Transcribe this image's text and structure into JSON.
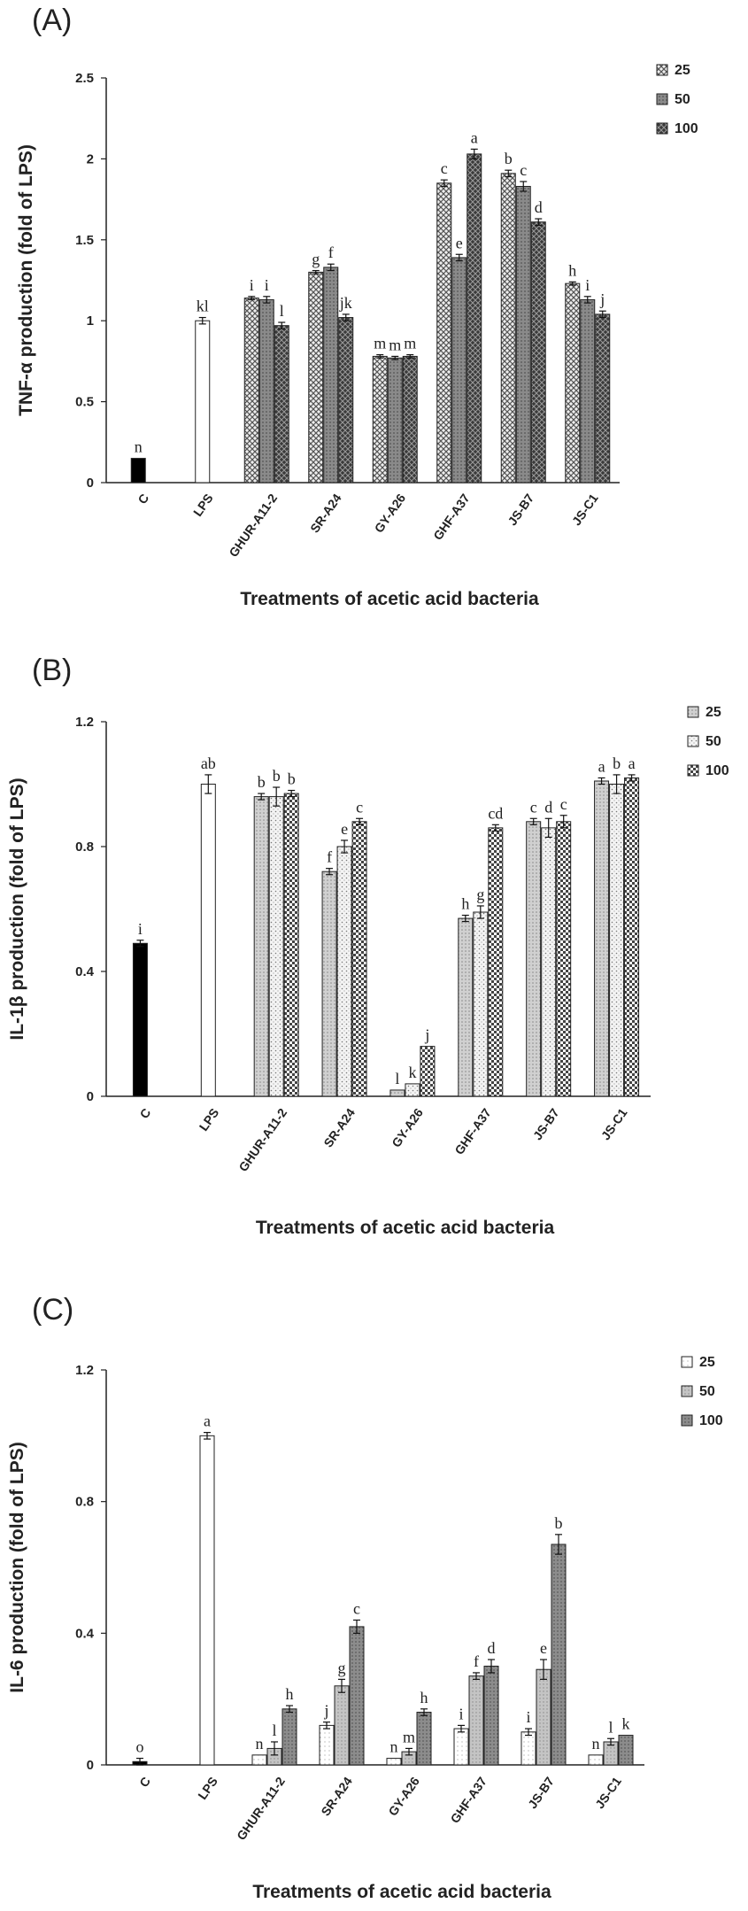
{
  "chart_data": [
    {
      "type": "bar",
      "panel_label": "(A)",
      "ylabel": "TNF-α production (fold of LPS)",
      "xlabel": "Treatments of acetic acid bacteria",
      "ylim": [
        0,
        2.5
      ],
      "yticks": [
        "0",
        "0.5",
        "1",
        "1.5",
        "2",
        "2.5"
      ],
      "legend_position": "top-right",
      "legend": [
        "25",
        "50",
        "100"
      ],
      "colors": {
        "C": "#000000",
        "LPS": "#ffffff",
        "s25": "#9c9c9c",
        "s50": "#8a8a8a",
        "s100": "#3a3a3a"
      },
      "controls": [
        {
          "category": "C",
          "value": 0.15,
          "err": 0.0,
          "label": "n"
        },
        {
          "category": "LPS",
          "value": 1.0,
          "err": 0.02,
          "label": "kl"
        }
      ],
      "groups": [
        {
          "category": "GHUR-A11-2",
          "values": [
            1.14,
            1.13,
            0.97
          ],
          "errs": [
            0.01,
            0.02,
            0.02
          ],
          "labels": [
            "i",
            "i",
            "l"
          ]
        },
        {
          "category": "SR-A24",
          "values": [
            1.3,
            1.33,
            1.02
          ],
          "errs": [
            0.01,
            0.02,
            0.02
          ],
          "labels": [
            "g",
            "f",
            "jk"
          ]
        },
        {
          "category": "GY-A26",
          "values": [
            0.78,
            0.77,
            0.78
          ],
          "errs": [
            0.01,
            0.01,
            0.01
          ],
          "labels": [
            "m",
            "m",
            "m"
          ]
        },
        {
          "category": "GHF-A37",
          "values": [
            1.85,
            1.39,
            2.03
          ],
          "errs": [
            0.02,
            0.02,
            0.03
          ],
          "labels": [
            "c",
            "e",
            "a"
          ]
        },
        {
          "category": "JS-B7",
          "values": [
            1.91,
            1.83,
            1.61
          ],
          "errs": [
            0.02,
            0.03,
            0.02
          ],
          "labels": [
            "b",
            "c",
            "d"
          ]
        },
        {
          "category": "JS-C1",
          "values": [
            1.23,
            1.13,
            1.04
          ],
          "errs": [
            0.01,
            0.02,
            0.02
          ],
          "labels": [
            "h",
            "i",
            "j"
          ]
        }
      ]
    },
    {
      "type": "bar",
      "panel_label": "(B)",
      "ylabel": "IL-1β production (fold of LPS)",
      "xlabel": "Treatments of acetic acid bacteria",
      "ylim": [
        0,
        1.2
      ],
      "yticks": [
        "0",
        "0.4",
        "0.8",
        "1.2"
      ],
      "legend_position": "top-right",
      "legend": [
        "25",
        "50",
        "100"
      ],
      "colors": {
        "C": "#000000",
        "LPS": "#ffffff",
        "s25": "#c8c8c8",
        "s50": "#e8e8e8",
        "s100": "#6a6a6a"
      },
      "controls": [
        {
          "category": "C",
          "value": 0.49,
          "err": 0.01,
          "label": "i"
        },
        {
          "category": "LPS",
          "value": 1.0,
          "err": 0.03,
          "label": "ab"
        }
      ],
      "groups": [
        {
          "category": "GHUR-A11-2",
          "values": [
            0.96,
            0.96,
            0.97
          ],
          "errs": [
            0.01,
            0.03,
            0.01
          ],
          "labels": [
            "b",
            "b",
            "b"
          ]
        },
        {
          "category": "SR-A24",
          "values": [
            0.72,
            0.8,
            0.88
          ],
          "errs": [
            0.01,
            0.02,
            0.01
          ],
          "labels": [
            "f",
            "e",
            "c"
          ]
        },
        {
          "category": "GY-A26",
          "values": [
            0.02,
            0.04,
            0.16
          ],
          "errs": [
            0.0,
            0.0,
            0.0
          ],
          "labels": [
            "l",
            "k",
            "j"
          ]
        },
        {
          "category": "GHF-A37",
          "values": [
            0.57,
            0.59,
            0.86
          ],
          "errs": [
            0.01,
            0.02,
            0.01
          ],
          "labels": [
            "h",
            "g",
            "cd"
          ]
        },
        {
          "category": "JS-B7",
          "values": [
            0.88,
            0.86,
            0.88
          ],
          "errs": [
            0.01,
            0.03,
            0.02
          ],
          "labels": [
            "c",
            "d",
            "c"
          ]
        },
        {
          "category": "JS-C1",
          "values": [
            1.01,
            1.0,
            1.02
          ],
          "errs": [
            0.01,
            0.03,
            0.01
          ],
          "labels": [
            "a",
            "b",
            "a"
          ]
        }
      ]
    },
    {
      "type": "bar",
      "panel_label": "(C)",
      "ylabel": "IL-6 production (fold of LPS)",
      "xlabel": "Treatments of acetic acid bacteria",
      "ylim": [
        0,
        1.2
      ],
      "yticks": [
        "0",
        "0.4",
        "0.8",
        "1.2"
      ],
      "legend_position": "top-right",
      "legend": [
        "25",
        "50",
        "100"
      ],
      "colors": {
        "C": "#000000",
        "LPS": "#ffffff",
        "s25": "#f2f2f2",
        "s50": "#bdbdbd",
        "s100": "#8c8c8c"
      },
      "controls": [
        {
          "category": "C",
          "value": 0.01,
          "err": 0.01,
          "label": "o"
        },
        {
          "category": "LPS",
          "value": 1.0,
          "err": 0.01,
          "label": "a"
        }
      ],
      "groups": [
        {
          "category": "GHUR-A11-2",
          "values": [
            0.03,
            0.05,
            0.17
          ],
          "errs": [
            0.0,
            0.02,
            0.01
          ],
          "labels": [
            "n",
            "l",
            "h"
          ]
        },
        {
          "category": "SR-A24",
          "values": [
            0.12,
            0.24,
            0.42
          ],
          "errs": [
            0.01,
            0.02,
            0.02
          ],
          "labels": [
            "j",
            "g",
            "c"
          ]
        },
        {
          "category": "GY-A26",
          "values": [
            0.02,
            0.04,
            0.16
          ],
          "errs": [
            0.0,
            0.01,
            0.01
          ],
          "labels": [
            "n",
            "m",
            "h"
          ]
        },
        {
          "category": "GHF-A37",
          "values": [
            0.11,
            0.27,
            0.3
          ],
          "errs": [
            0.01,
            0.01,
            0.02
          ],
          "labels": [
            "i",
            "f",
            "d"
          ]
        },
        {
          "category": "JS-B7",
          "values": [
            0.1,
            0.29,
            0.67
          ],
          "errs": [
            0.01,
            0.03,
            0.03
          ],
          "labels": [
            "i",
            "e",
            "b"
          ]
        },
        {
          "category": "JS-C1",
          "values": [
            0.03,
            0.07,
            0.09
          ],
          "errs": [
            0.0,
            0.01,
            0.0
          ],
          "labels": [
            "n",
            "l",
            "k"
          ]
        }
      ]
    }
  ]
}
